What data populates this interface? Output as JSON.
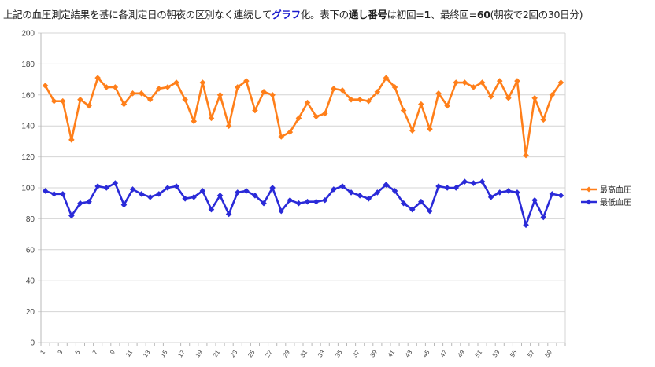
{
  "title": {
    "part1": "上記の血圧測定結果を基に各測定日の朝夜の区別なく連続して",
    "highlight": "グラフ",
    "part2": "化。表下の",
    "bold1": "通し番号",
    "part3": "は初回=",
    "bold2": "1",
    "part4": "、最終回=",
    "bold3": "60",
    "part5": "(朝夜で2回の30日分)"
  },
  "chart_data": {
    "type": "line",
    "title": "",
    "xlabel": "",
    "ylabel": "",
    "ylim": [
      0,
      200
    ],
    "yticks": [
      0,
      20,
      40,
      60,
      80,
      100,
      120,
      140,
      160,
      180,
      200
    ],
    "xtick_labels": [
      "1",
      "3",
      "5",
      "7",
      "9",
      "11",
      "13",
      "15",
      "17",
      "19",
      "21",
      "23",
      "25",
      "27",
      "29",
      "31",
      "33",
      "35",
      "37",
      "39",
      "41",
      "43",
      "45",
      "47",
      "49",
      "51",
      "53",
      "55",
      "57",
      "59"
    ],
    "x": [
      1,
      2,
      3,
      4,
      5,
      6,
      7,
      8,
      9,
      10,
      11,
      12,
      13,
      14,
      15,
      16,
      17,
      18,
      19,
      20,
      21,
      22,
      23,
      24,
      25,
      26,
      27,
      28,
      29,
      30,
      31,
      32,
      33,
      34,
      35,
      36,
      37,
      38,
      39,
      40,
      41,
      42,
      43,
      44,
      45,
      46,
      47,
      48,
      49,
      50,
      51,
      52,
      53,
      54,
      55,
      56,
      57,
      58,
      59,
      60
    ],
    "grid": true,
    "legend_position": "right",
    "series": [
      {
        "name": "最高血圧",
        "color": "#ff7f1a",
        "values": [
          166,
          156,
          156,
          131,
          157,
          153,
          171,
          165,
          165,
          154,
          161,
          161,
          157,
          164,
          165,
          168,
          157,
          143,
          168,
          145,
          160,
          140,
          165,
          169,
          150,
          162,
          160,
          133,
          136,
          145,
          155,
          146,
          148,
          164,
          163,
          157,
          157,
          156,
          162,
          171,
          165,
          150,
          137,
          154,
          138,
          161,
          153,
          168,
          168,
          165,
          168,
          159,
          169,
          158,
          169,
          121,
          158,
          144,
          160,
          168
        ]
      },
      {
        "name": "最低血圧",
        "color": "#2a2ad8",
        "values": [
          98,
          96,
          96,
          82,
          90,
          91,
          101,
          100,
          103,
          89,
          99,
          96,
          94,
          96,
          100,
          101,
          93,
          94,
          98,
          86,
          95,
          83,
          97,
          98,
          95,
          90,
          100,
          85,
          92,
          90,
          91,
          91,
          92,
          99,
          101,
          97,
          95,
          93,
          97,
          102,
          98,
          90,
          86,
          91,
          85,
          101,
          100,
          100,
          104,
          103,
          104,
          94,
          97,
          98,
          97,
          76,
          92,
          81,
          96,
          95
        ]
      }
    ]
  }
}
